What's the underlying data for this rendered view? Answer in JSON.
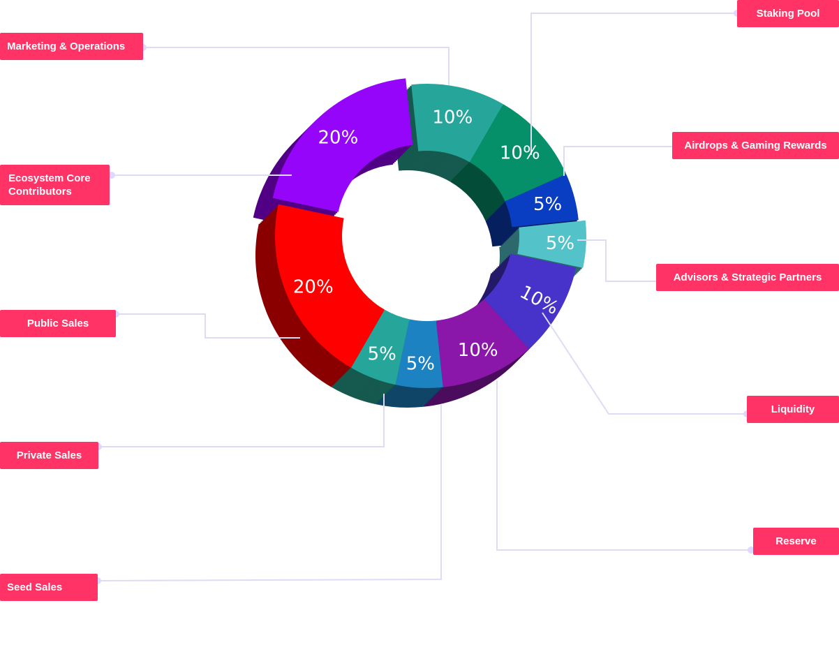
{
  "chart_data": {
    "type": "pie",
    "variant": "3d-donut",
    "unit": "%",
    "slices": [
      {
        "label": "Marketing & Operations",
        "value": 10,
        "display": "10%",
        "color": "#26a69a",
        "side_color": "#15594f"
      },
      {
        "label": "Staking Pool",
        "value": 10,
        "display": "10%",
        "color": "#05906a",
        "side_color": "#034d38"
      },
      {
        "label": "Airdrops & Gaming Rewards",
        "value": 5,
        "display": "5%",
        "color": "#0a3ec2",
        "side_color": "#06205f"
      },
      {
        "label": "Advisors & Strategic Partners",
        "value": 5,
        "display": "5%",
        "color": "#53c3c9",
        "side_color": "#2d686c"
      },
      {
        "label": "Liquidity",
        "value": 10,
        "display": "10%",
        "color": "#4733c9",
        "side_color": "#241a69"
      },
      {
        "label": "Reserve",
        "value": 10,
        "display": "10%",
        "color": "#8a17a9",
        "side_color": "#4b0c5d"
      },
      {
        "label": "Seed Sales",
        "value": 5,
        "display": "5%",
        "color": "#1c82c1",
        "side_color": "#0f4566"
      },
      {
        "label": "Private Sales",
        "value": 5,
        "display": "5%",
        "color": "#26a69a",
        "side_color": "#15594f"
      },
      {
        "label": "Public Sales",
        "value": 20,
        "display": "20%",
        "color": "#ff0000",
        "side_color": "#8a0000"
      },
      {
        "label": "Ecosystem Core Contributors",
        "value": 20,
        "display": "20%",
        "color": "#9405f9",
        "side_color": "#510085"
      }
    ]
  },
  "legend": {
    "staking_pool": "Staking Pool",
    "marketing": "Marketing & Operations",
    "airdrops": "Airdrops & Gaming Rewards",
    "ecosystem_line1": "Ecosystem Core",
    "ecosystem_line2": "Contributors",
    "advisors": "Advisors & Strategic Partners",
    "public_sales": "Public Sales",
    "liquidity": "Liquidity",
    "private_sales": "Private Sales",
    "reserve": "Reserve",
    "seed_sales": "Seed Sales"
  },
  "colors": {
    "label_bg": "#ff3366",
    "connector": "#dcdcf5",
    "dot": "#dcd8ff"
  }
}
